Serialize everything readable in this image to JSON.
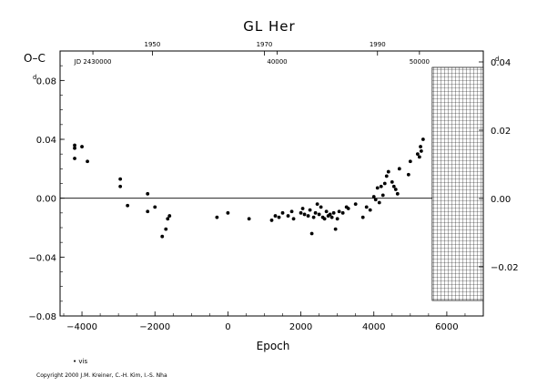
{
  "chart_data": {
    "type": "scatter",
    "title": "GL Her",
    "ylabel": "O–C",
    "ylabel_units": "d",
    "xlabel": "Epoch",
    "xlim": [
      -4600,
      7000
    ],
    "ylim": [
      -0.08,
      0.1
    ],
    "x_ticks": [
      -4000,
      -2000,
      0,
      2000,
      4000,
      6000
    ],
    "x_tick_labels": [
      "−4000",
      "−2000",
      "0",
      "2000",
      "4000",
      "6000"
    ],
    "y_ticks": [
      -0.08,
      -0.04,
      0.0,
      0.04,
      0.08
    ],
    "y_tick_labels": [
      "−0.08",
      "−0.04",
      "0.00",
      "0.04",
      "0.08"
    ],
    "right_ticks": [
      -0.02,
      0.0,
      0.02,
      0.04
    ],
    "right_tick_labels": [
      "−0.02",
      "0.00",
      "0.02",
      "0.04"
    ],
    "top_year_ticks": [
      {
        "epoch": -2070,
        "label": "1950"
      },
      {
        "epoch": 1000,
        "label": "1970"
      },
      {
        "epoch": 4100,
        "label": "1990"
      }
    ],
    "jd_labels": [
      {
        "epoch": -3700,
        "label": "JD 2430000"
      },
      {
        "epoch": 1350,
        "label": "40000"
      },
      {
        "epoch": 5250,
        "label": "50000"
      }
    ],
    "grid": false,
    "zero_line": true,
    "future_region_start": 5600,
    "legend_label": "• vis",
    "series": [
      {
        "marker": "filled-circle",
        "x": [
          -4200,
          -4200,
          -4200,
          -4000,
          -3850,
          -2950,
          -2950,
          -2750,
          -2200,
          -2200,
          -2000,
          -1800,
          -1700,
          -1650,
          -1600,
          -300,
          0,
          580,
          1200,
          1300,
          1400,
          1500,
          1650,
          1750,
          1800,
          2000,
          2050,
          2100,
          2200,
          2250,
          2300,
          2350,
          2400,
          2450,
          2500,
          2550,
          2600,
          2650,
          2700,
          2750,
          2800,
          2850,
          2900,
          2950,
          3000,
          3050,
          3150,
          3250,
          3300,
          3500,
          3700,
          3800,
          3900,
          4000,
          4050,
          4100,
          4150,
          4200,
          4250,
          4300,
          4350,
          4400,
          4500,
          4550,
          4600,
          4650,
          4700,
          4950,
          5000,
          5200,
          5250,
          5280,
          5300,
          5350
        ],
        "y": [
          0.036,
          0.034,
          0.027,
          0.035,
          0.025,
          0.013,
          0.008,
          -0.005,
          0.003,
          -0.009,
          -0.006,
          -0.026,
          -0.021,
          -0.014,
          -0.012,
          -0.013,
          -0.01,
          -0.014,
          -0.015,
          -0.012,
          -0.013,
          -0.01,
          -0.012,
          -0.009,
          -0.014,
          -0.01,
          -0.007,
          -0.011,
          -0.012,
          -0.008,
          -0.024,
          -0.013,
          -0.01,
          -0.004,
          -0.011,
          -0.006,
          -0.013,
          -0.014,
          -0.009,
          -0.012,
          -0.011,
          -0.013,
          -0.01,
          -0.021,
          -0.014,
          -0.009,
          -0.01,
          -0.006,
          -0.007,
          -0.004,
          -0.013,
          -0.006,
          -0.008,
          0.001,
          -0.001,
          0.007,
          -0.003,
          0.008,
          0.002,
          0.01,
          0.015,
          0.018,
          0.011,
          0.008,
          0.006,
          0.003,
          0.02,
          0.016,
          0.025,
          0.03,
          0.028,
          0.035,
          0.032,
          0.04
        ]
      }
    ]
  },
  "copyright": "Copyright 2000 J.M. Kreiner, C.-H. Kim, I.-S. Nha"
}
